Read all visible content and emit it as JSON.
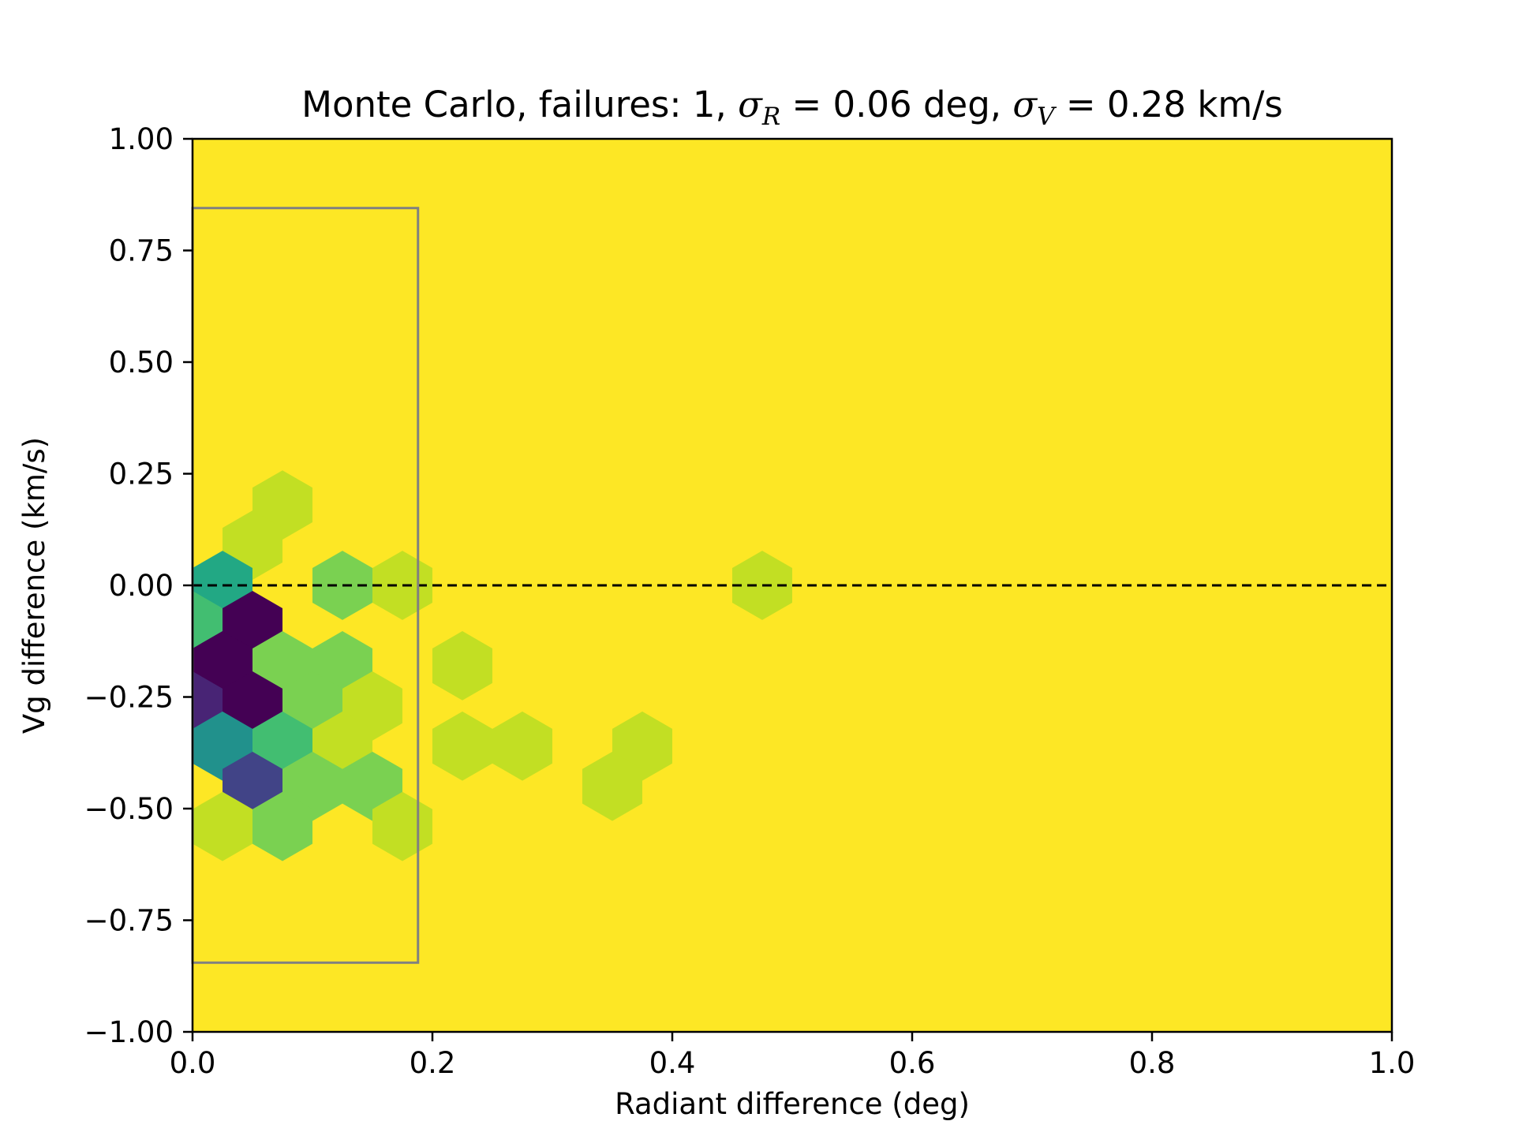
{
  "chart_data": {
    "type": "heatmap",
    "title": {
      "prefix": "Monte Carlo, failures: 1, ",
      "sigma": "σ",
      "r_sub": "R",
      "r_value": " = 0.06 deg, ",
      "v_sub": "V",
      "v_value": " = 0.28 km/s"
    },
    "xlabel": "Radiant difference (deg)",
    "ylabel": "Vg difference (km/s)",
    "xlim": [
      0,
      1
    ],
    "ylim": [
      -1,
      1
    ],
    "xticks": [
      "0.0",
      "0.2",
      "0.4",
      "0.6",
      "0.8",
      "1.0"
    ],
    "yticks": [
      "1.00",
      "0.75",
      "0.50",
      "0.25",
      "0.00",
      "−0.25",
      "−0.50",
      "−0.75",
      "−1.00"
    ],
    "grid": false,
    "colormap": "viridis",
    "background_color": "#fde725",
    "frame_color": "#000000",
    "reference_line": {
      "y": 0,
      "style": "dashed",
      "color": "#000000"
    },
    "box": {
      "x0": 0,
      "x1": 0.188,
      "y0": -0.845,
      "y1": 0.845,
      "color": "#808080"
    },
    "hex_bin_width": 0.05,
    "hex_cells": [
      {
        "x": 0.075,
        "y": 0.18,
        "color": "#c2df23"
      },
      {
        "x": 0.05,
        "y": 0.09,
        "color": "#c2df23"
      },
      {
        "x": 0.025,
        "y": 0.0,
        "color": "#22a884"
      },
      {
        "x": 0.125,
        "y": 0.0,
        "color": "#7ad151"
      },
      {
        "x": 0.175,
        "y": 0.0,
        "color": "#c2df23"
      },
      {
        "x": 0.475,
        "y": 0.0,
        "color": "#c2df23"
      },
      {
        "x": 0.0,
        "y": -0.09,
        "color": "#42be71"
      },
      {
        "x": 0.05,
        "y": -0.09,
        "color": "#440154"
      },
      {
        "x": 0.025,
        "y": -0.18,
        "color": "#440154"
      },
      {
        "x": 0.075,
        "y": -0.18,
        "color": "#7ad151"
      },
      {
        "x": 0.125,
        "y": -0.18,
        "color": "#7ad151"
      },
      {
        "x": 0.225,
        "y": -0.18,
        "color": "#c2df23"
      },
      {
        "x": 0.0,
        "y": -0.27,
        "color": "#482475"
      },
      {
        "x": 0.05,
        "y": -0.27,
        "color": "#440154"
      },
      {
        "x": 0.1,
        "y": -0.27,
        "color": "#7ad151"
      },
      {
        "x": 0.15,
        "y": -0.27,
        "color": "#c2df23"
      },
      {
        "x": 0.025,
        "y": -0.36,
        "color": "#21918c"
      },
      {
        "x": 0.075,
        "y": -0.36,
        "color": "#42be71"
      },
      {
        "x": 0.125,
        "y": -0.36,
        "color": "#c2df23"
      },
      {
        "x": 0.225,
        "y": -0.36,
        "color": "#c2df23"
      },
      {
        "x": 0.275,
        "y": -0.36,
        "color": "#c2df23"
      },
      {
        "x": 0.375,
        "y": -0.36,
        "color": "#c2df23"
      },
      {
        "x": 0.05,
        "y": -0.45,
        "color": "#414487"
      },
      {
        "x": 0.1,
        "y": -0.45,
        "color": "#7ad151"
      },
      {
        "x": 0.15,
        "y": -0.45,
        "color": "#7ad151"
      },
      {
        "x": 0.35,
        "y": -0.45,
        "color": "#c2df23"
      },
      {
        "x": 0.025,
        "y": -0.54,
        "color": "#c2df23"
      },
      {
        "x": 0.075,
        "y": -0.54,
        "color": "#7ad151"
      },
      {
        "x": 0.175,
        "y": -0.54,
        "color": "#c2df23"
      }
    ]
  }
}
